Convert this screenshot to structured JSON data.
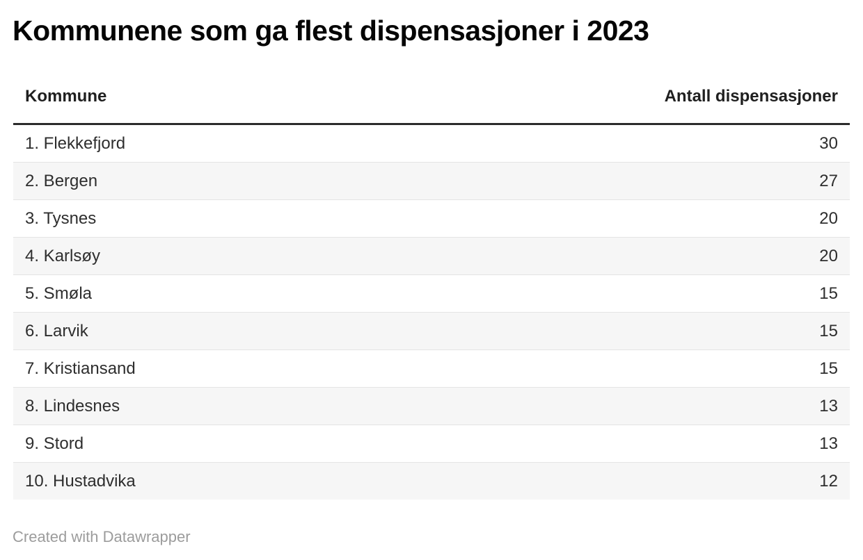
{
  "title": "Kommunene som ga flest dispensasjoner i 2023",
  "table": {
    "columns": [
      {
        "label": "Kommune",
        "align": "left"
      },
      {
        "label": "Antall dispensasjoner",
        "align": "right"
      }
    ],
    "rows": [
      {
        "kommune": "1. Flekkefjord",
        "antall": "30"
      },
      {
        "kommune": "2. Bergen",
        "antall": "27"
      },
      {
        "kommune": "3. Tysnes",
        "antall": "20"
      },
      {
        "kommune": "4. Karlsøy",
        "antall": "20"
      },
      {
        "kommune": "5. Smøla",
        "antall": "15"
      },
      {
        "kommune": "6. Larvik",
        "antall": "15"
      },
      {
        "kommune": "7. Kristiansand",
        "antall": "15"
      },
      {
        "kommune": "8. Lindesnes",
        "antall": "13"
      },
      {
        "kommune": "9. Stord",
        "antall": "13"
      },
      {
        "kommune": "10. Hustadvika",
        "antall": "12"
      }
    ]
  },
  "footer": {
    "credit": "Created with Datawrapper"
  },
  "colors": {
    "title_text": "#050505",
    "header_text": "#1f1f1f",
    "body_text": "#2e2e2e",
    "header_rule": "#2b2b2b",
    "row_separator": "#e4e4e4",
    "stripe_background": "#f6f6f6",
    "credit_text": "#9c9c9c",
    "page_background": "#ffffff"
  },
  "chart_data": {
    "type": "table",
    "title": "Kommunene som ga flest dispensasjoner i 2023",
    "columns": [
      "Kommune",
      "Antall dispensasjoner"
    ],
    "rows": [
      [
        "1. Flekkefjord",
        30
      ],
      [
        "2. Bergen",
        27
      ],
      [
        "3. Tysnes",
        20
      ],
      [
        "4. Karlsøy",
        20
      ],
      [
        "5. Smøla",
        15
      ],
      [
        "6. Larvik",
        15
      ],
      [
        "7. Kristiansand",
        15
      ],
      [
        "8. Lindesnes",
        13
      ],
      [
        "9. Stord",
        13
      ],
      [
        "10. Hustadvika",
        12
      ]
    ],
    "layout_hints": {
      "striped_rows": "even rows shaded",
      "value_alignment": "right",
      "credit": "Created with Datawrapper"
    }
  }
}
